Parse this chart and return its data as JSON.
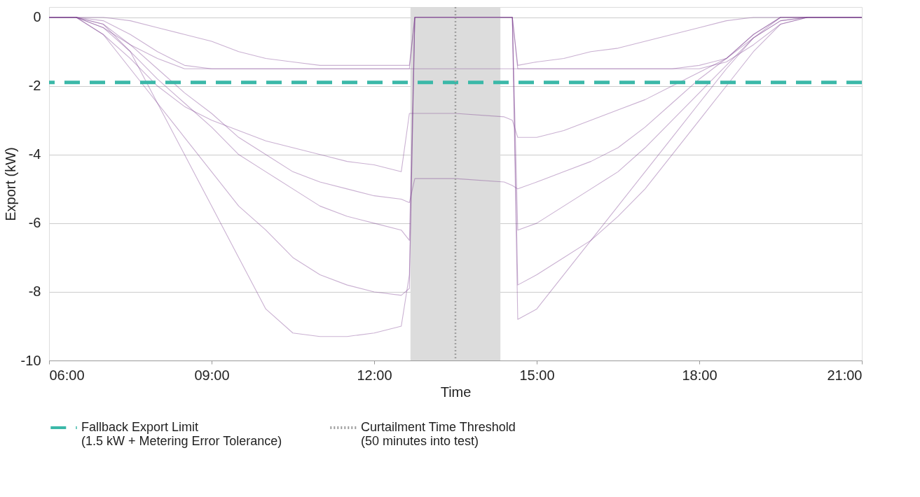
{
  "chart_data": {
    "type": "line",
    "xlabel": "Time",
    "ylabel": "Export (kW)",
    "x": [
      6,
      6.5,
      7,
      7.5,
      8,
      8.5,
      9,
      9.5,
      10,
      10.5,
      11,
      11.5,
      12,
      12.5,
      12.65,
      12.75,
      13.5,
      14.4,
      14.55,
      14.65,
      15,
      15.5,
      16,
      16.5,
      17,
      17.5,
      18,
      18.5,
      19,
      19.5,
      20,
      21
    ],
    "series": [
      {
        "color": "#7b3b8f",
        "values": [
          0,
          0,
          -0.2,
          -1,
          -2.5,
          -4,
          -5.5,
          -7,
          -8.5,
          -9.2,
          -9.3,
          -9.3,
          -9.2,
          -9,
          -7.5,
          0,
          0,
          0,
          0,
          -8.8,
          -8.5,
          -7.5,
          -6.5,
          -5.5,
          -4.5,
          -3.5,
          -2.5,
          -1.5,
          -0.6,
          -0.1,
          0,
          0
        ]
      },
      {
        "color": "#7b3b8f",
        "values": [
          0,
          0,
          -0.5,
          -1.5,
          -2.5,
          -3.5,
          -4.5,
          -5.5,
          -6.2,
          -7,
          -7.5,
          -7.8,
          -8,
          -8.1,
          -7.9,
          0,
          0,
          0,
          0,
          -7.8,
          -7.5,
          -7,
          -6.5,
          -5.8,
          -5,
          -4,
          -3,
          -2,
          -1,
          -0.2,
          0,
          0
        ]
      },
      {
        "color": "#7b3b8f",
        "values": [
          0,
          0,
          -0.3,
          -1,
          -1.8,
          -2.5,
          -3.2,
          -4,
          -4.5,
          -5,
          -5.5,
          -5.8,
          -6,
          -6.2,
          -6.5,
          0,
          0,
          0,
          0,
          -6.2,
          -6,
          -5.5,
          -5,
          -4.5,
          -3.8,
          -3,
          -2.2,
          -1.4,
          -0.6,
          0,
          0,
          0
        ]
      },
      {
        "color": "#7b3b8f",
        "values": [
          0,
          0,
          -0.2,
          -0.8,
          -1.5,
          -2.2,
          -2.8,
          -3.5,
          -4,
          -4.5,
          -4.8,
          -5,
          -5.2,
          -5.3,
          -5.4,
          -4.7,
          -4.7,
          -4.8,
          -4.9,
          -5,
          -4.8,
          -4.5,
          -4.2,
          -3.8,
          -3.2,
          -2.5,
          -1.8,
          -1.2,
          -0.5,
          0,
          0,
          0
        ]
      },
      {
        "color": "#7b3b8f",
        "values": [
          0,
          0,
          -0.3,
          -0.8,
          -1.2,
          -1.5,
          -1.5,
          -1.5,
          -1.5,
          -1.5,
          -1.5,
          -1.5,
          -1.5,
          -1.5,
          -1.5,
          -1.5,
          -1.5,
          -1.5,
          -1.5,
          -1.5,
          -1.5,
          -1.5,
          -1.5,
          -1.5,
          -1.5,
          -1.5,
          -1.5,
          -1.3,
          -0.8,
          -0.2,
          0,
          0
        ]
      },
      {
        "color": "#7b3b8f",
        "values": [
          0,
          0,
          -0.1,
          -0.5,
          -1,
          -1.4,
          -1.5,
          -1.5,
          -1.5,
          -1.5,
          -1.5,
          -1.5,
          -1.5,
          -1.5,
          -1.5,
          0,
          0,
          0,
          0,
          -1.5,
          -1.5,
          -1.5,
          -1.5,
          -1.5,
          -1.5,
          -1.5,
          -1.4,
          -1.2,
          -0.5,
          0,
          0,
          0
        ]
      },
      {
        "color": "#7b3b8f",
        "values": [
          0,
          0,
          -0.5,
          -1.2,
          -2,
          -2.6,
          -3,
          -3.3,
          -3.6,
          -3.8,
          -4,
          -4.2,
          -4.3,
          -4.5,
          -2.8,
          -2.8,
          -2.8,
          -2.9,
          -3,
          -3.5,
          -3.5,
          -3.3,
          -3,
          -2.7,
          -2.4,
          -2,
          -1.6,
          -1.2,
          -0.6,
          -0.1,
          0,
          0
        ]
      },
      {
        "color": "#7b3b8f",
        "values": [
          0,
          0,
          0,
          -0.1,
          -0.3,
          -0.5,
          -0.7,
          -1,
          -1.2,
          -1.3,
          -1.4,
          -1.4,
          -1.4,
          -1.4,
          -1.4,
          0,
          0,
          0,
          0,
          -1.4,
          -1.3,
          -1.2,
          -1,
          -0.9,
          -0.7,
          -0.5,
          -0.3,
          -0.1,
          0,
          0,
          0,
          0
        ]
      }
    ],
    "xlim": [
      6,
      21
    ],
    "xticks": [
      {
        "value": 6,
        "label": "06:00"
      },
      {
        "value": 9,
        "label": "09:00"
      },
      {
        "value": 12,
        "label": "12:00"
      },
      {
        "value": 15,
        "label": "15:00"
      },
      {
        "value": 18,
        "label": "18:00"
      },
      {
        "value": 21,
        "label": "21:00"
      }
    ],
    "ylim": [
      -10,
      0.3
    ],
    "yticks": [
      -10,
      -8,
      -6,
      -4,
      -2,
      0
    ],
    "grid": "y",
    "marker": "none",
    "line_style": "solid",
    "legend": "bottom",
    "bands": [
      {
        "axis": "x",
        "from": 12.67,
        "to": 14.33,
        "color": "#dcdcdc"
      }
    ],
    "ref_lines": [
      {
        "axis": "y",
        "value": -1.9,
        "label": "Fallback Export Limit (1.5 kW + Metering Error Tolerance)",
        "color": "#3bb8a8",
        "line_style": "dashed"
      },
      {
        "axis": "x",
        "value": 13.5,
        "label": "Curtailment Time Threshold (50 minutes into test)",
        "color": "#a0a0a0",
        "line_style": "dotted"
      }
    ]
  }
}
